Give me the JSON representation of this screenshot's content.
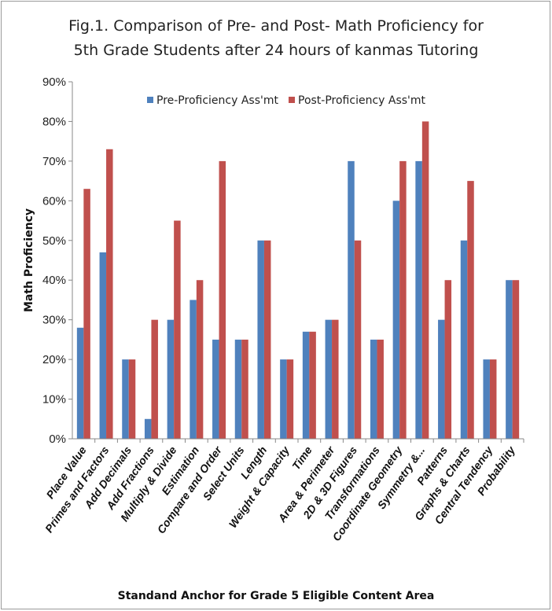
{
  "chart_data": {
    "type": "bar",
    "title_lines": [
      "Fig.1. Comparison of Pre- and  Post- Math Proficiency for",
      "5th  Grade Students after 24 hours of kanmas Tutoring"
    ],
    "xlabel": "Standand Anchor for Grade 5 Eligible Content Area",
    "ylabel": "Math Proficiency",
    "ylim": [
      0,
      90
    ],
    "yticks": [
      "0%",
      "10%",
      "20%",
      "30%",
      "40%",
      "50%",
      "60%",
      "70%",
      "80%",
      "90%"
    ],
    "grid": false,
    "legend_position": "top",
    "categories": [
      "Place Value",
      "Primes and Factors",
      "Add Decimals",
      "Add Fractions",
      "Multiply & Divide",
      "Estimation",
      "Compare and Order",
      "Select Units",
      "Length",
      "Weight & Capacity",
      "Time",
      "Area & Perimeter",
      "2D & 3D Figures",
      "Transformations",
      "Coordinate Geometry",
      "Symmetry &...",
      "Patterns",
      "Graphs & Charts",
      "Central Tendency",
      "Probability"
    ],
    "series": [
      {
        "name": "Pre-Proficiency Ass'mt",
        "color": "#4F81BD",
        "values": [
          28,
          47,
          20,
          5,
          30,
          35,
          25,
          25,
          50,
          20,
          27,
          30,
          70,
          25,
          60,
          70,
          30,
          50,
          20,
          40
        ]
      },
      {
        "name": "Post-Proficiency Ass'mt",
        "color": "#C0504D",
        "values": [
          63,
          73,
          20,
          30,
          55,
          40,
          70,
          25,
          50,
          20,
          27,
          30,
          50,
          25,
          70,
          80,
          40,
          65,
          20,
          40
        ]
      }
    ]
  }
}
